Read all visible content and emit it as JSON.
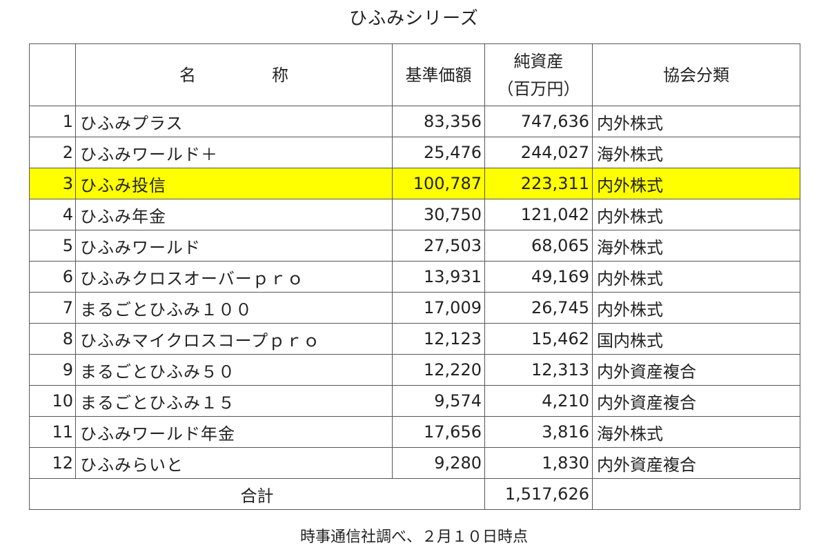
{
  "title": "ひふみシリーズ",
  "table": {
    "headers": {
      "no": "",
      "name_part1": "名",
      "name_part2": "称",
      "nav": "基準価額",
      "net_assets_line1": "純資産",
      "net_assets_line2": "（百万円）",
      "classification": "協会分類"
    },
    "rows": [
      {
        "no": "1",
        "name": "ひふみプラス",
        "nav": "83,356",
        "net_assets": "747,636",
        "classification": "内外株式"
      },
      {
        "no": "2",
        "name": "ひふみワールド＋",
        "nav": "25,476",
        "net_assets": "244,027",
        "classification": "海外株式"
      },
      {
        "no": "3",
        "name": "ひふみ投信",
        "nav": "100,787",
        "net_assets": "223,311",
        "classification": "内外株式",
        "highlight": "#ffff00"
      },
      {
        "no": "4",
        "name": "ひふみ年金",
        "nav": "30,750",
        "net_assets": "121,042",
        "classification": "内外株式"
      },
      {
        "no": "5",
        "name": "ひふみワールド",
        "nav": "27,503",
        "net_assets": "68,065",
        "classification": "海外株式"
      },
      {
        "no": "6",
        "name": "ひふみクロスオーバーｐｒｏ",
        "nav": "13,931",
        "net_assets": "49,169",
        "classification": "内外株式"
      },
      {
        "no": "7",
        "name": "まるごとひふみ１００",
        "nav": "17,009",
        "net_assets": "26,745",
        "classification": "内外株式"
      },
      {
        "no": "8",
        "name": "ひふみマイクロスコープｐｒｏ",
        "nav": "12,123",
        "net_assets": "15,462",
        "classification": "国内株式"
      },
      {
        "no": "9",
        "name": "まるごとひふみ５０",
        "nav": "12,220",
        "net_assets": "12,313",
        "classification": "内外資産複合"
      },
      {
        "no": "10",
        "name": "まるごとひふみ１５",
        "nav": "9,574",
        "net_assets": "4,210",
        "classification": "内外資産複合"
      },
      {
        "no": "11",
        "name": "ひふみワールド年金",
        "nav": "17,656",
        "net_assets": "3,816",
        "classification": "海外株式"
      },
      {
        "no": "12",
        "name": "ひふみらいと",
        "nav": "9,280",
        "net_assets": "1,830",
        "classification": "内外資産複合"
      }
    ],
    "total": {
      "label": "合計",
      "net_assets": "1,517,626"
    }
  },
  "footer": "時事通信社調べ、２月１０日時点"
}
